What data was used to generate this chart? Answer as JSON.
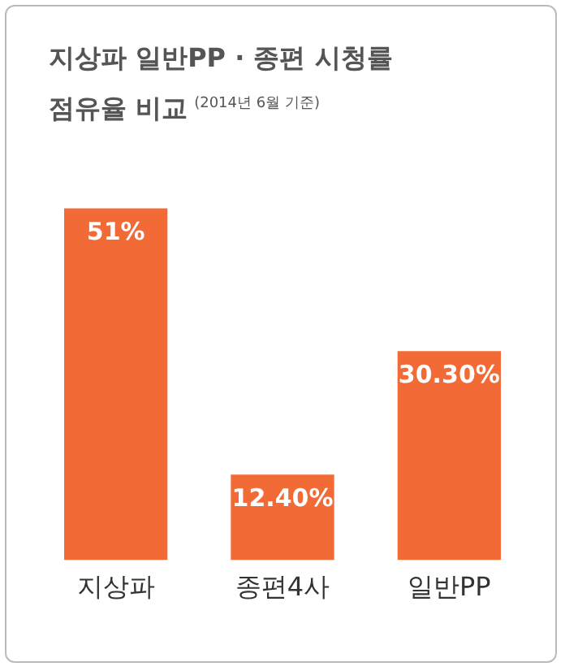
{
  "chart_data": {
    "type": "bar",
    "title": "지상파 일반PP · 종편 시청률\n점유율 비교",
    "subtitle": "(2014년 6월 기준)",
    "categories": [
      "지상파",
      "종편4사",
      "일반PP"
    ],
    "values": [
      51,
      12.4,
      30.3
    ],
    "color": "#f26a35",
    "value_labels": [
      "51%",
      "12.40%",
      "30.30%"
    ],
    "tick_labels": "x",
    "grid": false,
    "legend": false
  }
}
